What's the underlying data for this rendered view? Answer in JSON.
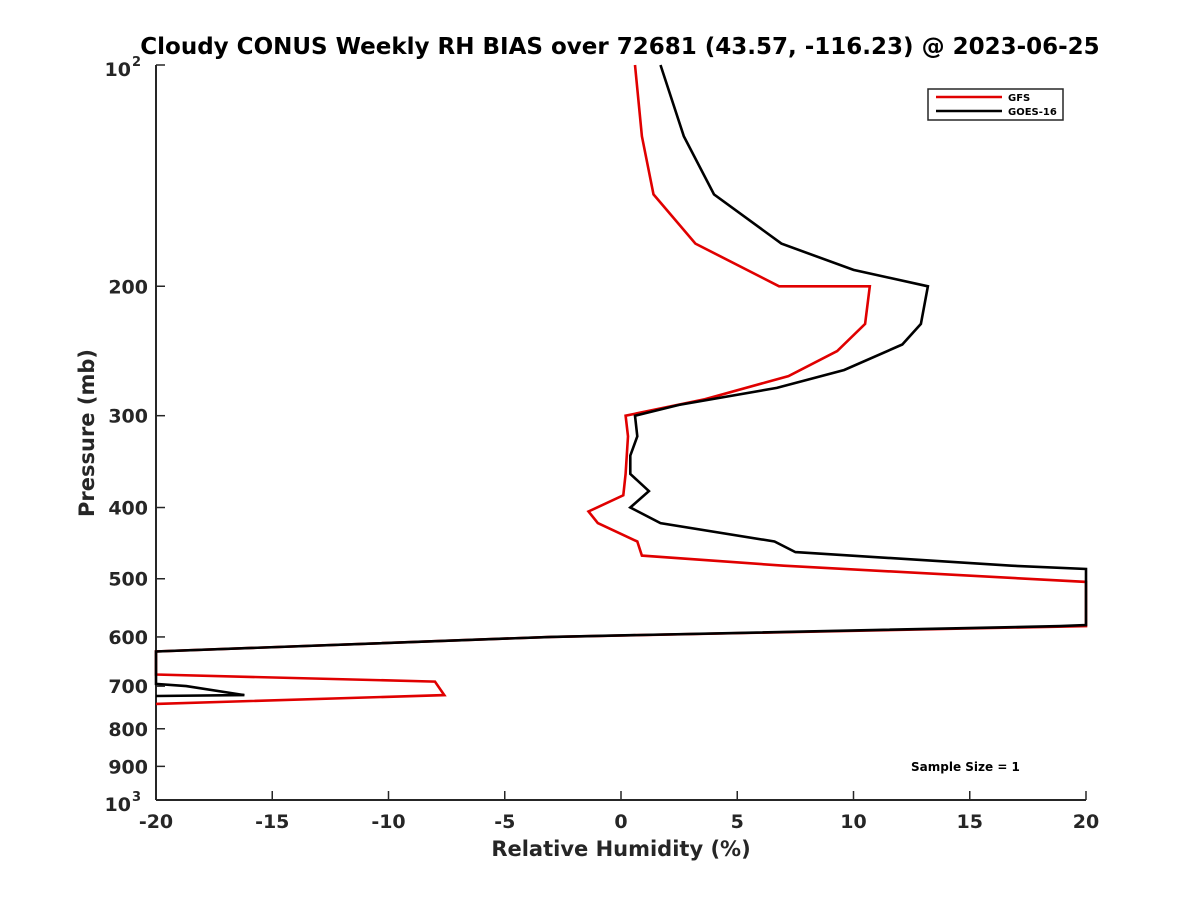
{
  "chart_data": {
    "type": "line",
    "title": "Cloudy CONUS Weekly RH BIAS over 72681 (43.57, -116.23) @ 2023-06-25",
    "xlabel": "Relative Humidity (%)",
    "ylabel": "Pressure (mb)",
    "xlim": [
      -20,
      20
    ],
    "ylim": [
      100,
      1000
    ],
    "y_scale": "log",
    "y_reversed": true,
    "grid": false,
    "legend_position": "top-right",
    "x_ticks": [
      "-20",
      "-15",
      "-10",
      "-5",
      "0",
      "5",
      "10",
      "15",
      "20"
    ],
    "y_ticks": [
      {
        "value": 100,
        "base": "10",
        "exp": "2"
      },
      {
        "value": 200,
        "label": "200"
      },
      {
        "value": 300,
        "label": "300"
      },
      {
        "value": 400,
        "label": "400"
      },
      {
        "value": 500,
        "label": "500"
      },
      {
        "value": 600,
        "label": "600"
      },
      {
        "value": 700,
        "label": "700"
      },
      {
        "value": 800,
        "label": "800"
      },
      {
        "value": 900,
        "label": "900"
      },
      {
        "value": 1000,
        "base": "10",
        "exp": "3"
      }
    ],
    "series": [
      {
        "name": "GFS",
        "color": "#e00000",
        "points": [
          [
            0.6,
            100
          ],
          [
            0.9,
            125
          ],
          [
            1.4,
            150
          ],
          [
            3.2,
            175
          ],
          [
            6.8,
            200
          ],
          [
            10.7,
            200
          ],
          [
            10.5,
            225
          ],
          [
            9.3,
            245
          ],
          [
            7.2,
            265
          ],
          [
            3.6,
            285
          ],
          [
            0.2,
            300
          ],
          [
            0.3,
            320
          ],
          [
            0.2,
            360
          ],
          [
            0.1,
            385
          ],
          [
            -1.4,
            405
          ],
          [
            -1.0,
            420
          ],
          [
            0.7,
            445
          ],
          [
            0.9,
            465
          ],
          [
            7.0,
            480
          ],
          [
            20,
            505
          ],
          [
            20,
            580
          ],
          [
            -3.0,
            600
          ],
          [
            -20,
            628
          ],
          [
            -20,
            675
          ],
          [
            -8.0,
            690
          ],
          [
            -7.6,
            720
          ],
          [
            -20,
            740
          ]
        ]
      },
      {
        "name": "GOES-16",
        "color": "#000000",
        "points": [
          [
            1.7,
            100
          ],
          [
            2.7,
            125
          ],
          [
            4.0,
            150
          ],
          [
            6.9,
            175
          ],
          [
            10.0,
            190
          ],
          [
            13.2,
            200
          ],
          [
            12.9,
            225
          ],
          [
            12.1,
            240
          ],
          [
            9.6,
            260
          ],
          [
            6.7,
            275
          ],
          [
            2.5,
            290
          ],
          [
            0.6,
            300
          ],
          [
            0.7,
            320
          ],
          [
            0.4,
            340
          ],
          [
            0.4,
            360
          ],
          [
            1.2,
            380
          ],
          [
            0.4,
            400
          ],
          [
            1.7,
            420
          ],
          [
            6.6,
            445
          ],
          [
            7.5,
            460
          ],
          [
            16.8,
            480
          ],
          [
            20,
            485
          ],
          [
            20,
            578
          ],
          [
            18.9,
            580
          ],
          [
            -3.0,
            600
          ],
          [
            -20,
            628
          ],
          [
            -20,
            695
          ],
          [
            -18.7,
            700
          ],
          [
            -16.2,
            720
          ],
          [
            -20,
            722
          ]
        ]
      }
    ],
    "annotations": [
      "Sample Size = 1"
    ]
  }
}
